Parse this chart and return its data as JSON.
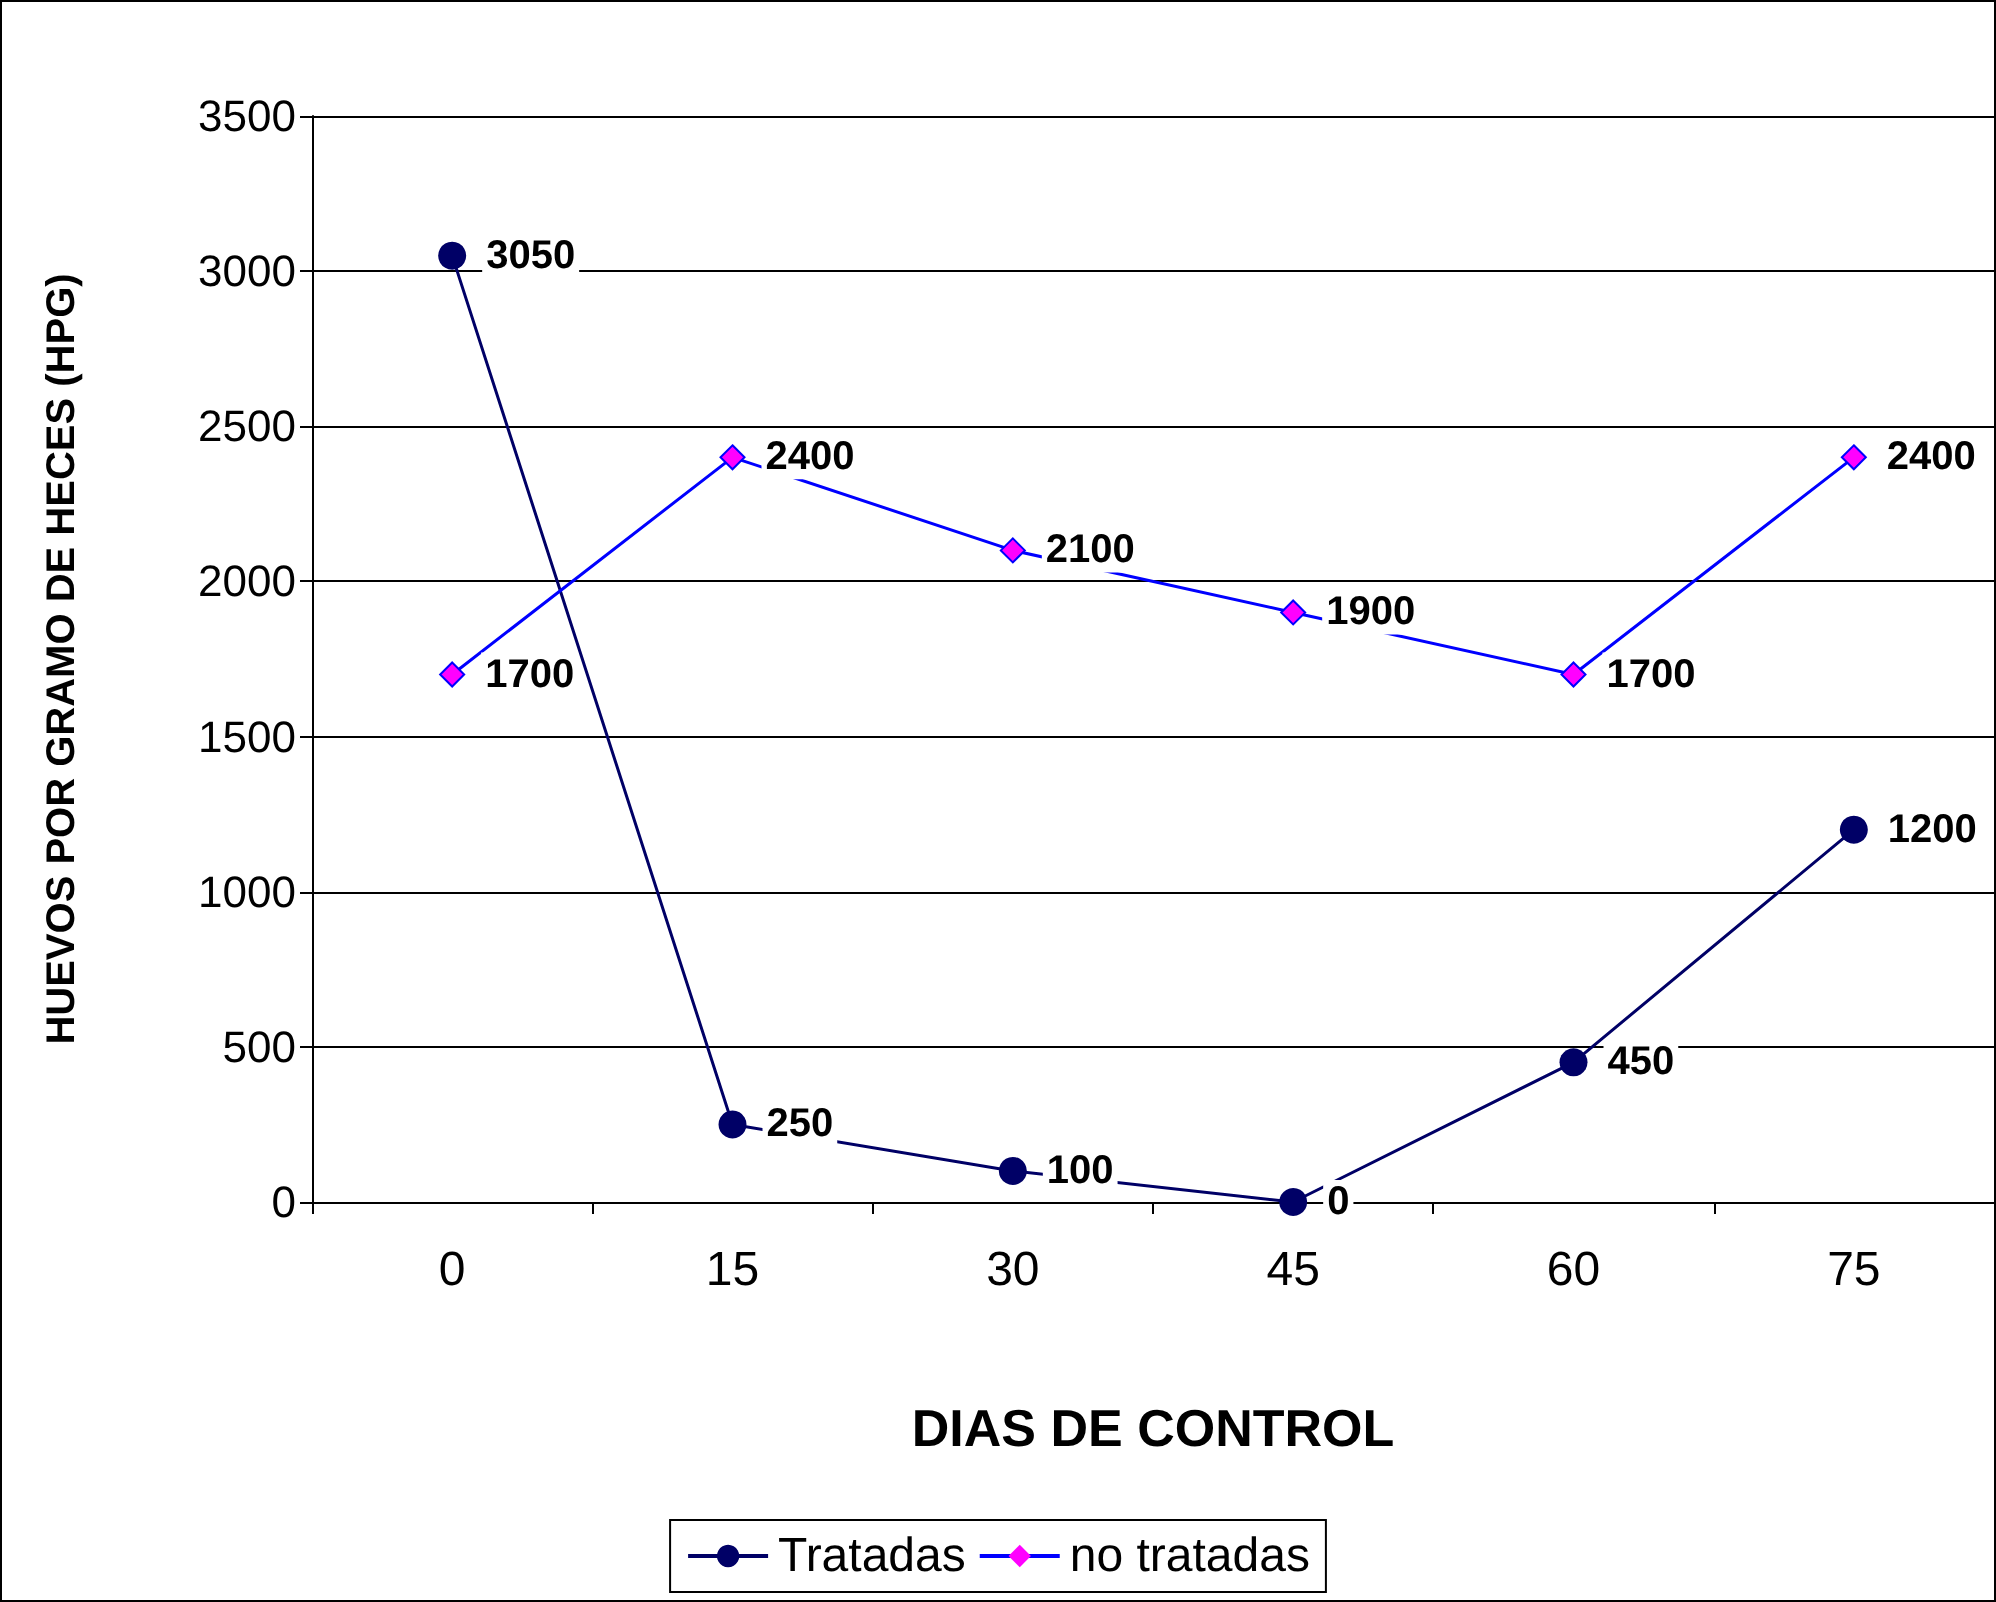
{
  "chart_data": {
    "type": "line",
    "xlabel": "DIAS DE CONTROL",
    "ylabel": "HUEVOS POR GRAMO DE HECES (HPG)",
    "categories": [
      "0",
      "15",
      "30",
      "45",
      "60",
      "75"
    ],
    "series": [
      {
        "name": "Tratadas",
        "color": "#000066",
        "marker": "circle",
        "values": [
          3050,
          250,
          100,
          0,
          450,
          1200
        ]
      },
      {
        "name": "no tratadas",
        "color": "#0000ff",
        "marker": "diamond",
        "colors": [
          "#ff00ff",
          "#ff00ff",
          "#ff00ff",
          "#ff00ff",
          "#ff00ff",
          "#ff00ff"
        ],
        "values": [
          1700,
          2400,
          2100,
          1900,
          1700,
          2400
        ]
      }
    ],
    "ylim": [
      0,
      3500
    ],
    "yticks": [
      0,
      500,
      1000,
      1500,
      2000,
      2500,
      3000,
      3500
    ],
    "grid": "y",
    "legend": "bottom",
    "data_labels": true
  }
}
